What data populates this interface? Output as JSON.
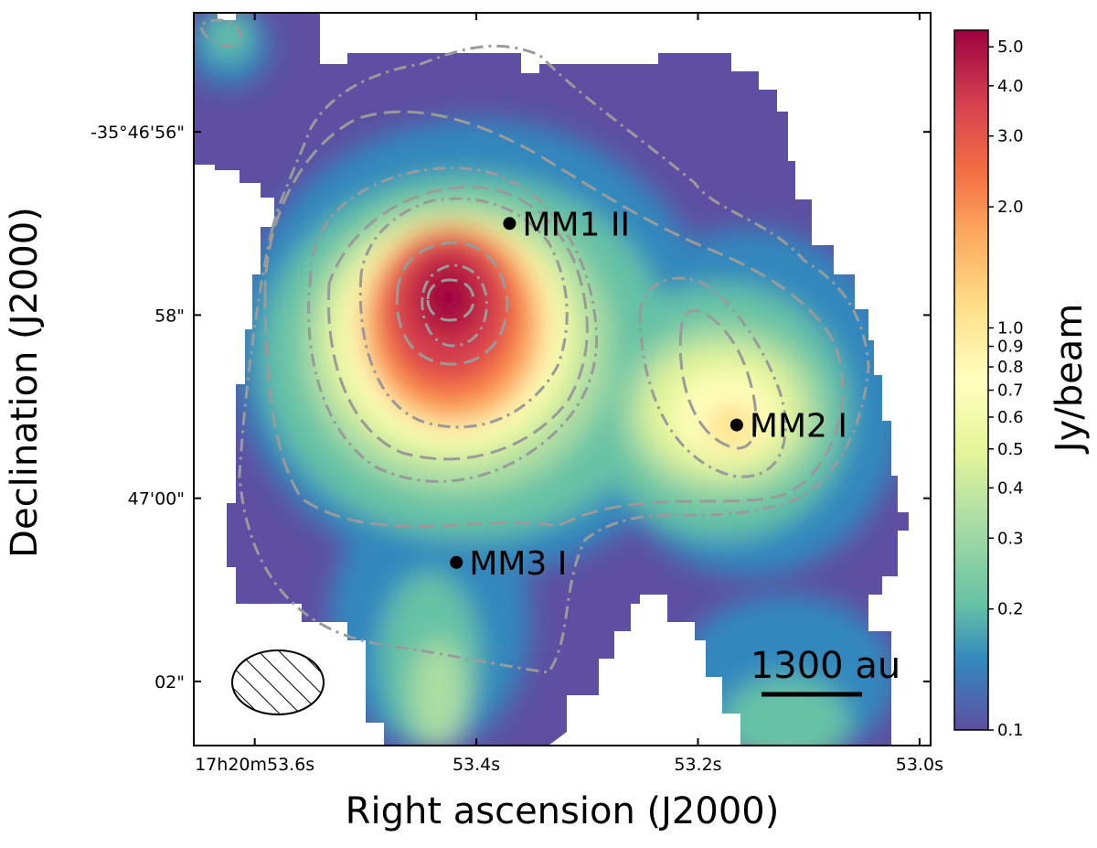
{
  "chart_data": {
    "type": "heatmap",
    "title": "",
    "xlabel": "Right ascension (J2000)",
    "ylabel": "Declination (J2000)",
    "x_ticks": [
      "17h20m53.6s",
      "53.4s",
      "53.2s",
      "53.0s"
    ],
    "x_tick_values": [
      53.6,
      53.4,
      53.2,
      53.0
    ],
    "x_range": [
      53.655,
      52.99
    ],
    "y_ticks": [
      "-35°46'56\"",
      "58\"",
      "47'00\"",
      "02\""
    ],
    "y_tick_values": [
      56,
      58,
      60,
      62
    ],
    "y_range": [
      54.7,
      62.7
    ],
    "colorbar": {
      "label": "Jy/beam",
      "scale": "log",
      "range": [
        0.1,
        5.5
      ],
      "colormap": "Spectral_r",
      "ticks": [
        0.1,
        0.2,
        0.3,
        0.4,
        0.5,
        0.6,
        0.7,
        0.8,
        0.9,
        1.0,
        2.0,
        3.0,
        4.0,
        5.0
      ],
      "tick_labels": [
        "0.1",
        "0.2",
        "0.3",
        "0.4",
        "0.5",
        "0.6",
        "0.7",
        "0.8",
        "0.9",
        "1.0",
        "2.0",
        "3.0",
        "4.0",
        "5.0"
      ]
    },
    "peaks": [
      {
        "ra": 53.42,
        "dec": 57.8,
        "value": 5.5
      },
      {
        "ra": 53.17,
        "dec": 59.2,
        "value": 0.75
      }
    ],
    "sources": [
      {
        "label": "MM1 II",
        "ra": 53.37,
        "dec": 57.0
      },
      {
        "label": "MM2 I",
        "ra": 53.165,
        "dec": 59.2
      },
      {
        "label": "MM3 I",
        "ra": 53.418,
        "dec": 60.7
      }
    ],
    "scale_bar_label": "1300 au",
    "beam": {
      "shape": "hatched-ellipse",
      "position": "bottom-left"
    }
  }
}
